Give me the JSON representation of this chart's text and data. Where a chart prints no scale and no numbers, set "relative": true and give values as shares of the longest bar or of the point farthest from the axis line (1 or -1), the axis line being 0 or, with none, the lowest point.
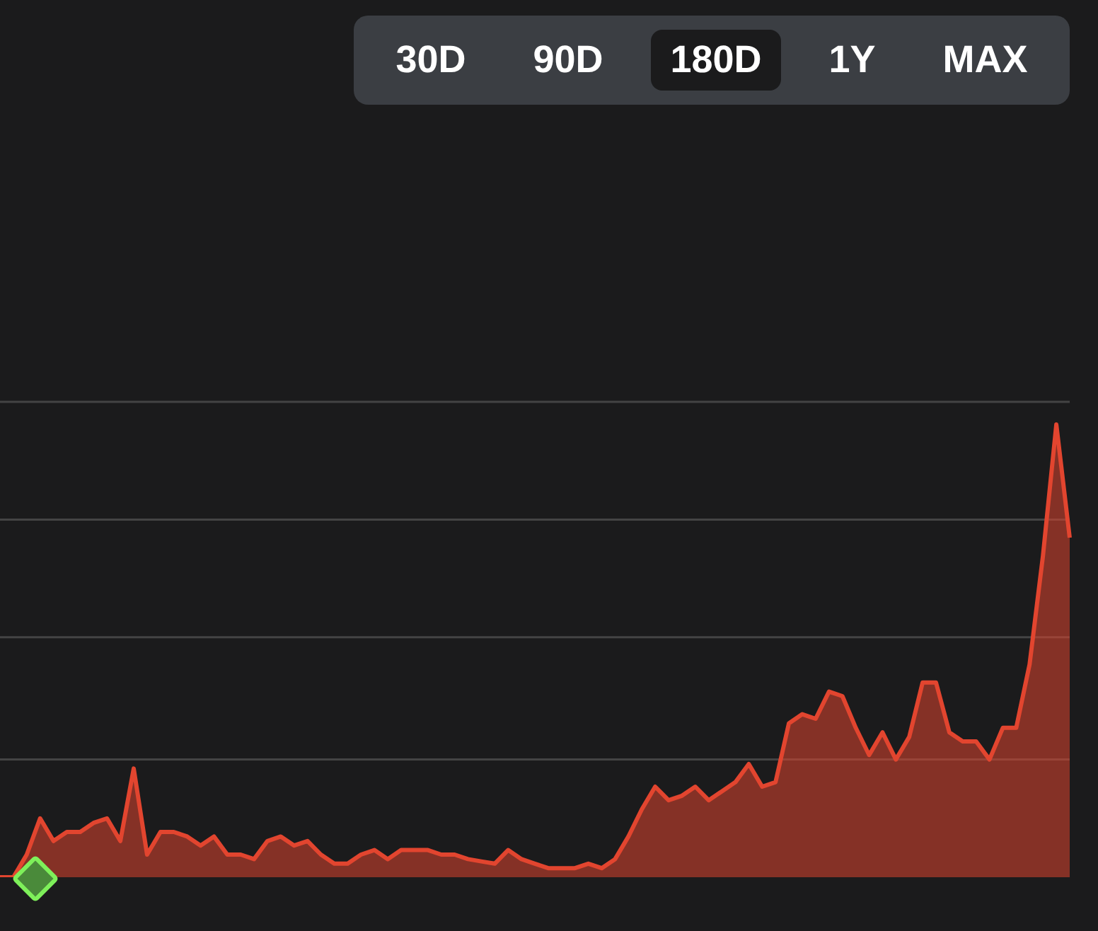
{
  "chart_data": {
    "type": "area",
    "relative": true,
    "ref_lines": [
      {
        "axis": "y",
        "value": 0.26,
        "color": "#444444"
      },
      {
        "axis": "y",
        "value": 0.53,
        "color": "#444444"
      },
      {
        "axis": "y",
        "value": 0.79,
        "color": "#444444"
      },
      {
        "axis": "y",
        "value": 1.05,
        "color": "#444444"
      }
    ],
    "legend": false,
    "categories": [
      null,
      null,
      null,
      null,
      null,
      null,
      null,
      null,
      null,
      null,
      null,
      null,
      null,
      null,
      null,
      null,
      null,
      null,
      null,
      null,
      null,
      null,
      null,
      null,
      null,
      null,
      null,
      null,
      null,
      null,
      null,
      null,
      null,
      null,
      null,
      null,
      null,
      null,
      null,
      null,
      null,
      null,
      null,
      null,
      null,
      null,
      null,
      null,
      null,
      null,
      null,
      null,
      null,
      null,
      null,
      null,
      null,
      null,
      null,
      null,
      null,
      null,
      null,
      null,
      null,
      null,
      null,
      null,
      null,
      null,
      null,
      null,
      null,
      null,
      null,
      null,
      null,
      null,
      null,
      null,
      null
    ],
    "series": [
      {
        "color": "#e2452f",
        "values": [
          0,
          0,
          0.05,
          0.13,
          0.08,
          0.1,
          0.1,
          0.12,
          0.13,
          0.08,
          0.24,
          0.05,
          0.1,
          0.1,
          0.09,
          0.07,
          0.09,
          0.05,
          0.05,
          0.04,
          0.08,
          0.09,
          0.07,
          0.08,
          0.05,
          0.03,
          0.03,
          0.05,
          0.06,
          0.04,
          0.06,
          0.06,
          0.06,
          0.05,
          0.05,
          0.04,
          0.035,
          0.03,
          0.06,
          0.04,
          0.03,
          0.02,
          0.02,
          0.02,
          0.03,
          0.02,
          0.04,
          0.09,
          0.15,
          0.2,
          0.17,
          0.18,
          0.2,
          0.17,
          0.19,
          0.21,
          0.25,
          0.2,
          0.21,
          0.34,
          0.36,
          0.35,
          0.41,
          0.4,
          0.33,
          0.27,
          0.32,
          0.26,
          0.31,
          0.43,
          0.43,
          0.32,
          0.3,
          0.3,
          0.26,
          0.33,
          0.33,
          0.47,
          0.71,
          1,
          0.75
        ]
      }
    ],
    "annotations": [
      "30D",
      "90D",
      "180D",
      "1Y",
      "MAX"
    ]
  }
}
